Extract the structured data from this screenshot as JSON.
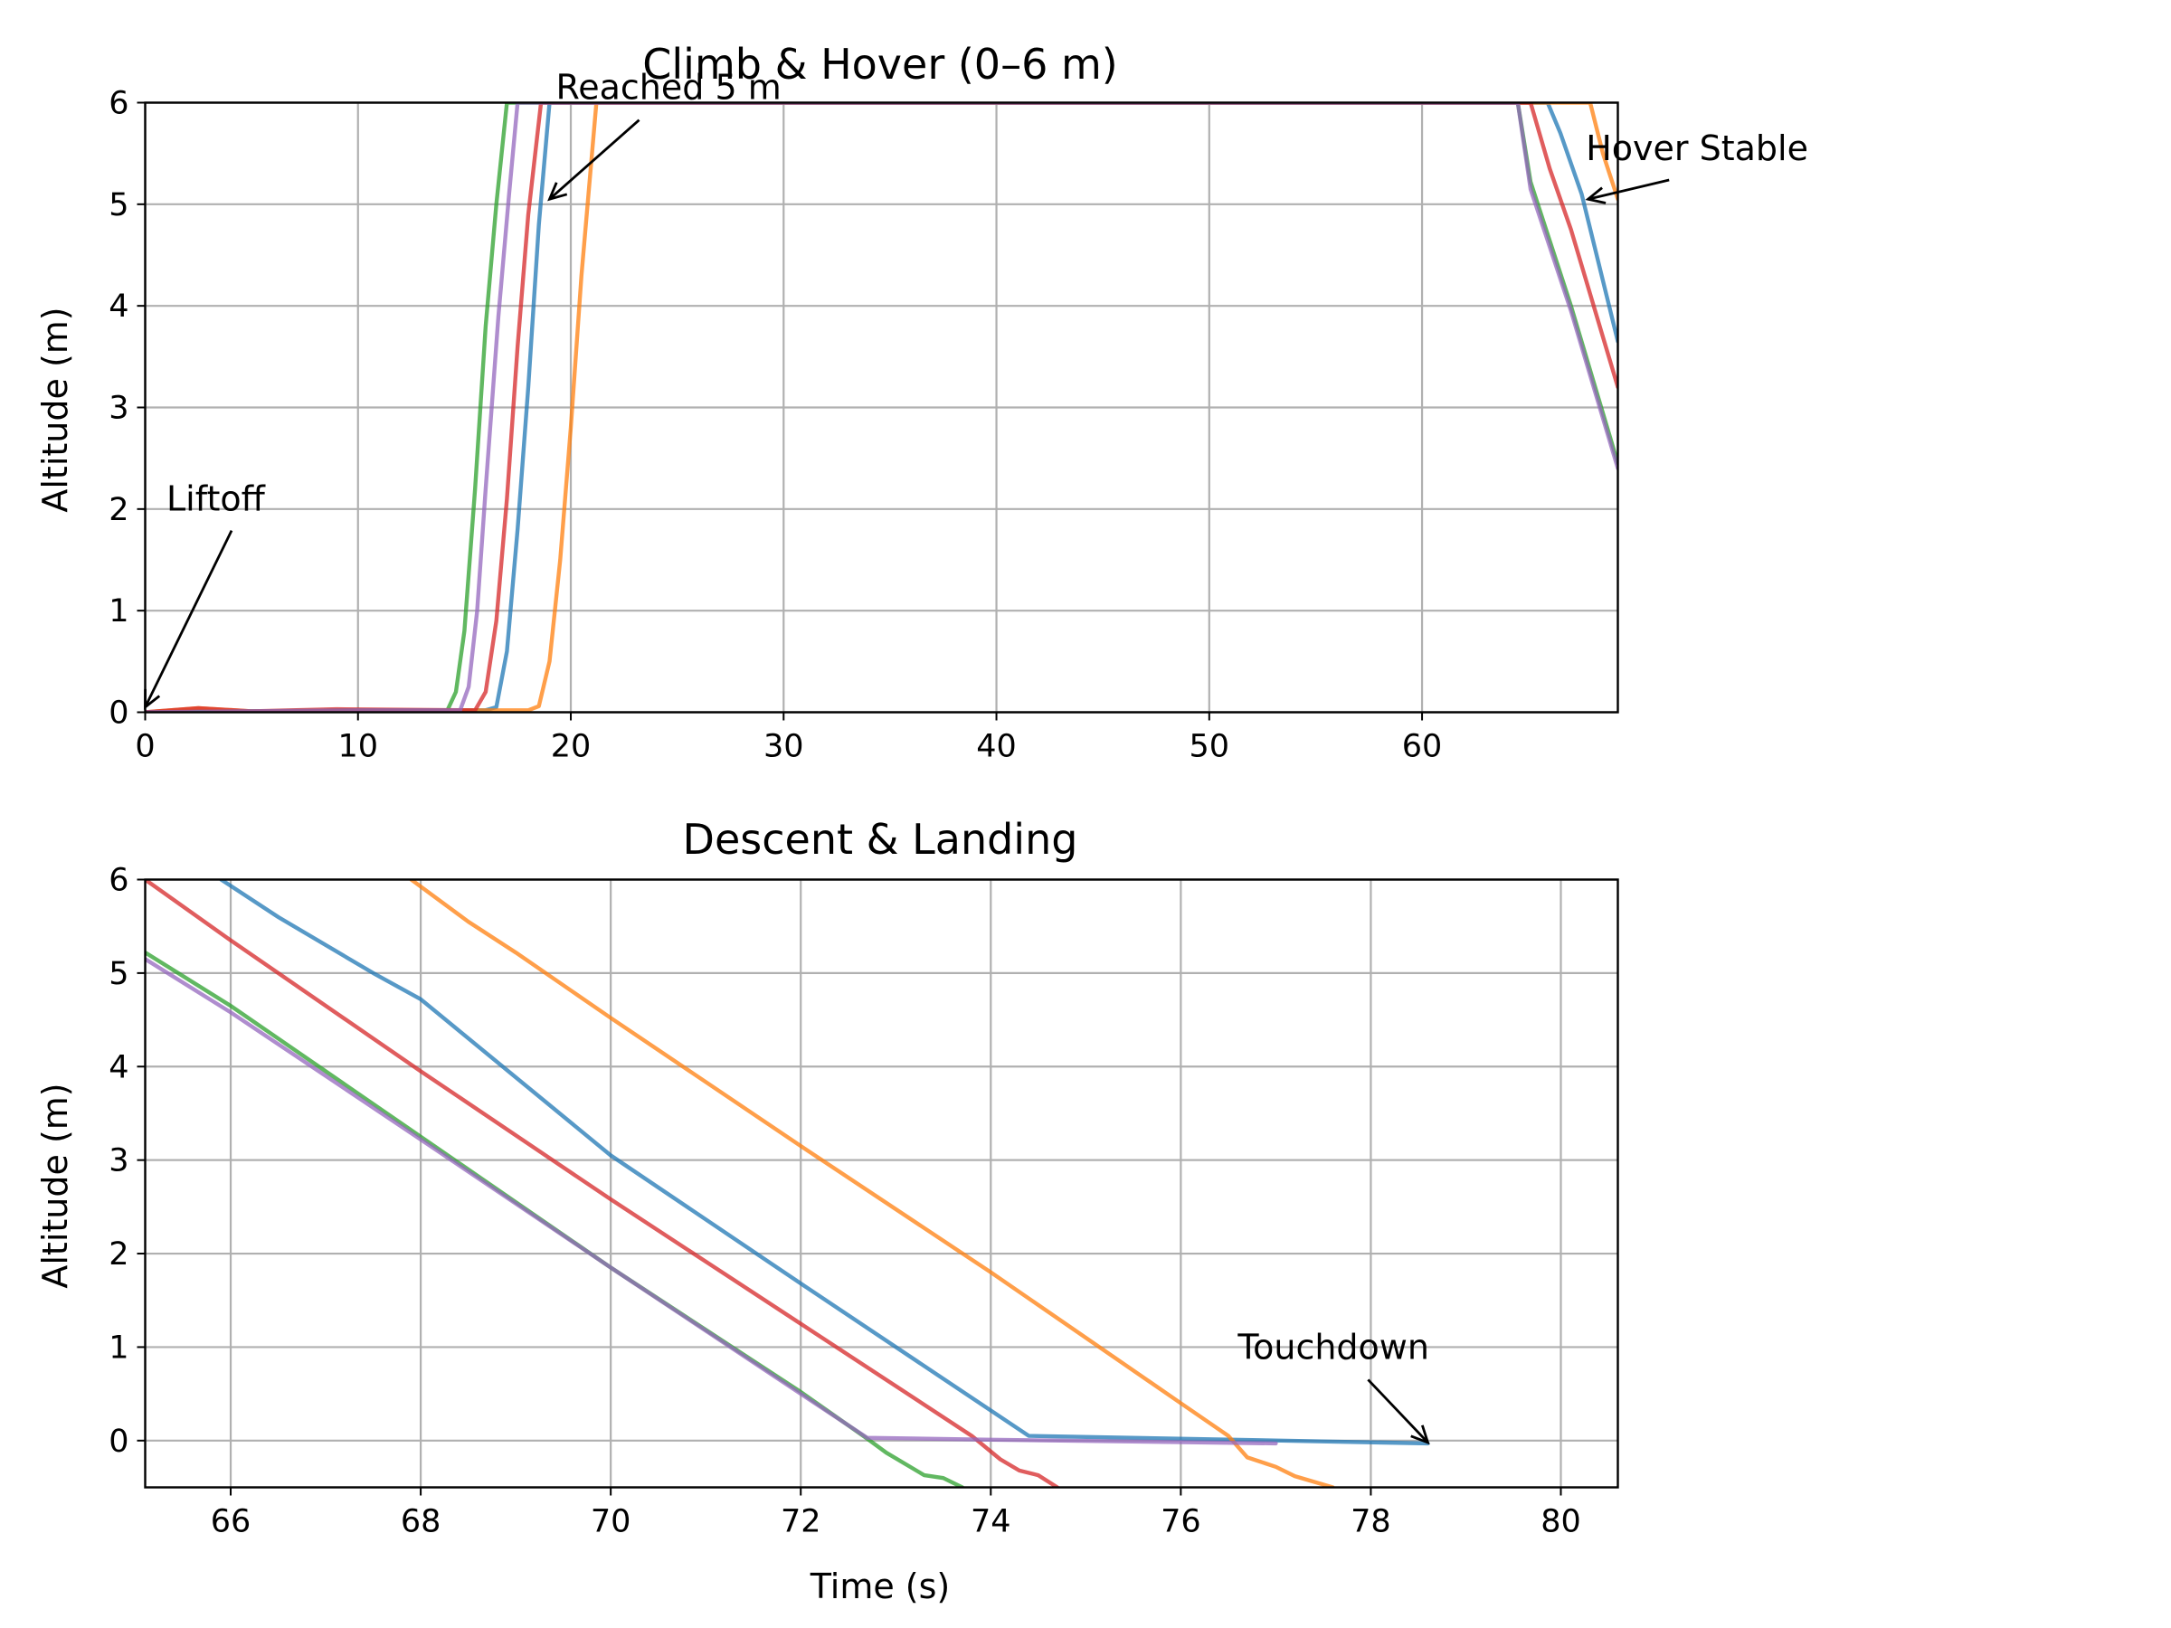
{
  "figure": {
    "subplots": [
      {
        "id": "climb",
        "title": "Climb & Hover (0–6 m)",
        "xlabel": "",
        "ylabel": "Altitude (m)",
        "xlim": [
          0,
          69.2
        ],
        "ylim": [
          0,
          6
        ],
        "xticks": [
          0,
          10,
          20,
          30,
          40,
          50,
          60
        ],
        "yticks": [
          0,
          1,
          2,
          3,
          4,
          5,
          6
        ],
        "grid": true
      },
      {
        "id": "descent",
        "title": "Descent & Landing",
        "xlabel": "Time (s)",
        "ylabel": "Altitude (m)",
        "xlim": [
          65.1,
          80.6
        ],
        "ylim": [
          -0.5,
          6
        ],
        "xticks": [
          66,
          68,
          70,
          72,
          74,
          76,
          78,
          80
        ],
        "yticks": [
          0,
          1,
          2,
          3,
          4,
          5,
          6
        ],
        "grid": true
      }
    ]
  },
  "chart_data": [
    {
      "type": "line",
      "title": "Climb & Hover (0–6 m)",
      "xlabel": "",
      "ylabel": "Altitude (m)",
      "xlim": [
        0,
        69.2
      ],
      "ylim": [
        0,
        6
      ],
      "grid": true,
      "series": [
        {
          "color": "#1f77b4",
          "points": [
            [
              0,
              0
            ],
            [
              5,
              0.01
            ],
            [
              10,
              0.02
            ],
            [
              16,
              0.02
            ],
            [
              16.5,
              0.05
            ],
            [
              17,
              0.6
            ],
            [
              17.5,
              1.8
            ],
            [
              18,
              3.2
            ],
            [
              18.5,
              4.8
            ],
            [
              19.0,
              6.0
            ],
            [
              65.9,
              6.0
            ],
            [
              66.5,
              5.7
            ],
            [
              67.5,
              5.1
            ],
            [
              69.2,
              3.65
            ]
          ]
        },
        {
          "color": "#ff7f0e",
          "points": [
            [
              0,
              0
            ],
            [
              2.5,
              0.04
            ],
            [
              5,
              0.01
            ],
            [
              10,
              0.02
            ],
            [
              18,
              0.02
            ],
            [
              18.5,
              0.06
            ],
            [
              19,
              0.5
            ],
            [
              19.5,
              1.5
            ],
            [
              20,
              2.8
            ],
            [
              20.5,
              4.3
            ],
            [
              21.2,
              6.0
            ],
            [
              67.9,
              6.0
            ],
            [
              68.5,
              5.5
            ],
            [
              69.2,
              5.05
            ]
          ]
        },
        {
          "color": "#2ca02c",
          "points": [
            [
              0,
              0
            ],
            [
              10,
              0.02
            ],
            [
              14.2,
              0.02
            ],
            [
              14.6,
              0.2
            ],
            [
              15,
              0.8
            ],
            [
              15.5,
              2.2
            ],
            [
              16,
              3.8
            ],
            [
              16.5,
              5.0
            ],
            [
              17.0,
              6.0
            ],
            [
              64.5,
              6.0
            ],
            [
              65.1,
              5.22
            ],
            [
              67,
              4.0
            ],
            [
              69.2,
              2.45
            ]
          ]
        },
        {
          "color": "#d62728",
          "points": [
            [
              0,
              0
            ],
            [
              2.5,
              0.04
            ],
            [
              5,
              0.01
            ],
            [
              9,
              0.03
            ],
            [
              15.5,
              0.02
            ],
            [
              16,
              0.2
            ],
            [
              16.5,
              0.9
            ],
            [
              17,
              2.1
            ],
            [
              17.5,
              3.6
            ],
            [
              18.0,
              4.9
            ],
            [
              18.6,
              6.0
            ],
            [
              65.1,
              6.0
            ],
            [
              66,
              5.35
            ],
            [
              67,
              4.75
            ],
            [
              69.2,
              3.2
            ]
          ]
        },
        {
          "color": "#9467bd",
          "points": [
            [
              0,
              0
            ],
            [
              10,
              0.02
            ],
            [
              14.8,
              0.02
            ],
            [
              15.2,
              0.25
            ],
            [
              15.6,
              1.0
            ],
            [
              16,
              2.2
            ],
            [
              16.6,
              3.9
            ],
            [
              17.1,
              5.1
            ],
            [
              17.5,
              6.0
            ],
            [
              64.5,
              6.0
            ],
            [
              65.1,
              5.15
            ],
            [
              67,
              3.95
            ],
            [
              69.2,
              2.4
            ]
          ]
        }
      ],
      "annotations": [
        {
          "text": "Liftoff",
          "xy": [
            0,
            0.05
          ],
          "xytext": [
            1,
            2.1
          ]
        },
        {
          "text": "Reached 5 m",
          "xy": [
            19,
            5.05
          ],
          "xytext": [
            19.3,
            6.15
          ]
        },
        {
          "text": "Hover Stable",
          "xy": [
            67.8,
            5.05
          ],
          "xytext": [
            67.7,
            5.55
          ]
        }
      ]
    },
    {
      "type": "line",
      "title": "Descent & Landing",
      "xlabel": "Time (s)",
      "ylabel": "Altitude (m)",
      "xlim": [
        65.1,
        80.6
      ],
      "ylim": [
        -0.5,
        6
      ],
      "grid": true,
      "series": [
        {
          "color": "#1f77b4",
          "points": [
            [
              65.9,
              6.0
            ],
            [
              66.5,
              5.6
            ],
            [
              67.5,
              5.0
            ],
            [
              68,
              4.72
            ],
            [
              70,
              3.05
            ],
            [
              72,
              1.68
            ],
            [
              74.4,
              0.05
            ],
            [
              78.6,
              -0.03
            ]
          ]
        },
        {
          "color": "#ff7f0e",
          "points": [
            [
              67.9,
              6.0
            ],
            [
              68.5,
              5.55
            ],
            [
              69,
              5.22
            ],
            [
              70,
              4.52
            ],
            [
              72,
              3.15
            ],
            [
              74,
              1.8
            ],
            [
              76,
              0.4
            ],
            [
              76.5,
              0.05
            ],
            [
              76.7,
              -0.18
            ],
            [
              77,
              -0.28
            ],
            [
              77.2,
              -0.38
            ],
            [
              77.6,
              -0.5
            ]
          ]
        },
        {
          "color": "#2ca02c",
          "points": [
            [
              65.1,
              5.22
            ],
            [
              66,
              4.65
            ],
            [
              68,
              3.25
            ],
            [
              70,
              1.85
            ],
            [
              72,
              0.52
            ],
            [
              72.7,
              0.02
            ],
            [
              72.9,
              -0.13
            ],
            [
              73.3,
              -0.37
            ],
            [
              73.5,
              -0.4
            ],
            [
              73.7,
              -0.5
            ]
          ]
        },
        {
          "color": "#d62728",
          "points": [
            [
              65.1,
              6.0
            ],
            [
              66,
              5.35
            ],
            [
              68,
              3.95
            ],
            [
              70,
              2.58
            ],
            [
              72,
              1.25
            ],
            [
              73.8,
              0.05
            ],
            [
              74.1,
              -0.2
            ],
            [
              74.3,
              -0.32
            ],
            [
              74.5,
              -0.37
            ],
            [
              74.7,
              -0.5
            ]
          ]
        },
        {
          "color": "#9467bd",
          "points": [
            [
              65.1,
              5.15
            ],
            [
              66,
              4.58
            ],
            [
              68,
              3.22
            ],
            [
              70,
              1.85
            ],
            [
              72,
              0.5
            ],
            [
              72.7,
              0.03
            ],
            [
              74,
              0.01
            ],
            [
              77,
              -0.03
            ]
          ]
        }
      ],
      "annotations": [
        {
          "text": "Touchdown",
          "xy": [
            78.6,
            -0.02
          ],
          "xytext": [
            76.6,
            1.0
          ]
        }
      ]
    }
  ]
}
